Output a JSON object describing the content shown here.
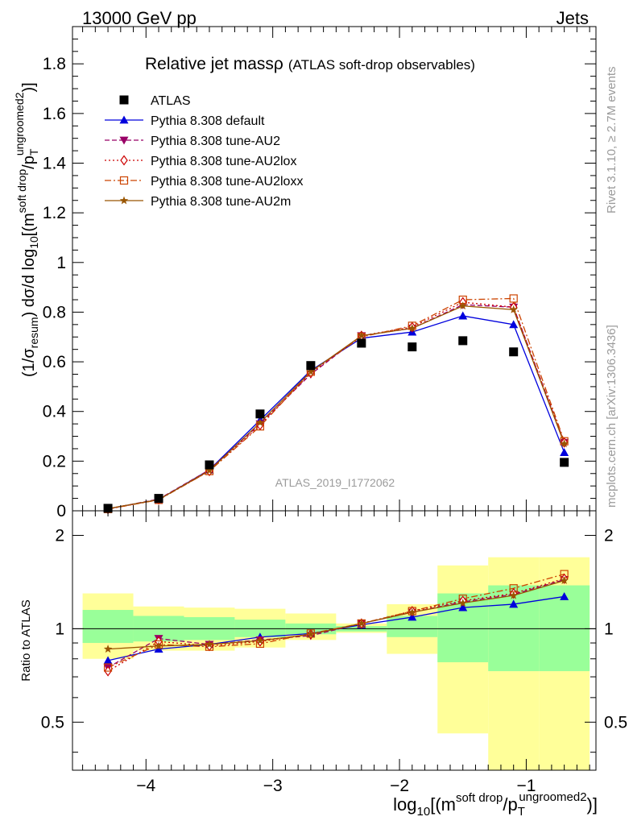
{
  "header": {
    "left": "13000 GeV pp",
    "right": "Jets"
  },
  "side_labels": {
    "rivet": "Rivet 3.1.10, ≥ 2.7M events",
    "mcplots": "mcplots.cern.ch [arXiv:1306.3436]"
  },
  "chart_data": [
    {
      "type": "line",
      "title_main": "Relative jet mass",
      "title_rho": "ρ",
      "title_suffix": "(ATLAS soft-drop observables)",
      "analysis_tag": "ATLAS_2019_I1772062",
      "ylabel": "(1/σresum) dσ/d log10[(m soft drop/pT ungroomed)2]",
      "ylabel_parts": {
        "a": "(1/σ",
        "a_sub": "resum",
        "b": ") dσ/d log",
        "b_sub": "10",
        "c": "[(m",
        "c_sup": "soft drop",
        "d": "/p",
        "d_sub": "T",
        "d_sup": "ungroomed",
        "e": ")",
        "e_sup": "2",
        "f": "]"
      },
      "xlim": [
        -4.58,
        -0.45
      ],
      "ylim": [
        0,
        1.95
      ],
      "yticks": [
        0,
        0.2,
        0.4,
        0.6,
        0.8,
        1,
        1.2,
        1.4,
        1.6,
        1.8
      ],
      "ytick_labels": [
        "0",
        "0.2",
        "0.4",
        "0.6",
        "0.8",
        "1",
        "1.2",
        "1.4",
        "1.6",
        "1.8"
      ],
      "x": [
        -4.3,
        -3.9,
        -3.5,
        -3.1,
        -2.7,
        -2.3,
        -1.9,
        -1.5,
        -1.1,
        -0.7
      ],
      "legend": {
        "placement": "top-left",
        "entries": [
          "ATLAS",
          "Pythia 8.308 default",
          "Pythia 8.308 tune-AU2",
          "Pythia 8.308 tune-AU2lox",
          "Pythia 8.308 tune-AU2loxx",
          "Pythia 8.308 tune-AU2m"
        ]
      },
      "data": {
        "name": "ATLAS",
        "values": [
          0.01,
          0.05,
          0.185,
          0.39,
          0.585,
          0.675,
          0.66,
          0.685,
          0.64,
          0.195
        ]
      },
      "series": [
        {
          "name": "Pythia 8.308 default",
          "color": "#0000dd",
          "marker": "triangle-up",
          "dash": "solid",
          "values": [
            0.008,
            0.045,
            0.165,
            0.365,
            0.565,
            0.695,
            0.72,
            0.785,
            0.75,
            0.235
          ]
        },
        {
          "name": "Pythia 8.308 tune-AU2",
          "color": "#990066",
          "marker": "triangle-down",
          "dash": "dashed",
          "values": [
            0.008,
            0.047,
            0.165,
            0.35,
            0.55,
            0.705,
            0.735,
            0.83,
            0.82,
            0.275
          ]
        },
        {
          "name": "Pythia 8.308 tune-AU2lox",
          "color": "#cc0000",
          "marker": "diamond",
          "dash": "dotted",
          "values": [
            0.007,
            0.045,
            0.16,
            0.345,
            0.555,
            0.705,
            0.74,
            0.84,
            0.82,
            0.275
          ]
        },
        {
          "name": "Pythia 8.308 tune-AU2loxx",
          "color": "#cc4400",
          "marker": "square-open",
          "dash": "dashdot",
          "values": [
            0.007,
            0.044,
            0.16,
            0.34,
            0.56,
            0.7,
            0.745,
            0.85,
            0.855,
            0.28
          ]
        },
        {
          "name": "Pythia 8.308 tune-AU2m",
          "color": "#995500",
          "marker": "star",
          "dash": "solid",
          "values": [
            0.009,
            0.045,
            0.162,
            0.355,
            0.56,
            0.705,
            0.735,
            0.825,
            0.81,
            0.27
          ]
        }
      ]
    },
    {
      "type": "line",
      "ylabel": "Ratio to ATLAS",
      "xlabel": "log10[(m soft drop/pT ungroomed)2]",
      "xlabel_parts": {
        "a": "log",
        "a_sub": "10",
        "b": "[(m",
        "b_sup": "soft drop",
        "c": "/p",
        "c_sub": "T",
        "c_sup": "ungroomed",
        "d": ")",
        "d_sup": "2",
        "e": "]"
      },
      "y_scale": "log",
      "xlim": [
        -4.58,
        -0.45
      ],
      "ylim": [
        0.35,
        2.4
      ],
      "xticks": [
        -4,
        -3,
        -2,
        -1
      ],
      "xtick_labels": [
        "−4",
        "−3",
        "−2",
        "−1"
      ],
      "yticks": [
        0.5,
        1,
        2
      ],
      "ytick_labels": [
        "0.5",
        "1",
        "2"
      ],
      "bin_edges": [
        -4.5,
        -4.1,
        -3.7,
        -3.3,
        -2.9,
        -2.5,
        -2.1,
        -1.7,
        -1.3,
        -0.9,
        -0.5
      ],
      "band_inner": {
        "color": "#99ff99",
        "lo": [
          0.9,
          0.91,
          0.92,
          0.94,
          0.96,
          0.98,
          0.94,
          0.78,
          0.73,
          0.73
        ],
        "hi": [
          1.15,
          1.1,
          1.09,
          1.07,
          1.04,
          1.02,
          1.1,
          1.3,
          1.38,
          1.38
        ]
      },
      "band_outer": {
        "color": "#ffff99",
        "lo": [
          0.8,
          0.85,
          0.85,
          0.87,
          0.92,
          0.97,
          0.83,
          0.46,
          0.33,
          0.33
        ],
        "hi": [
          1.3,
          1.18,
          1.17,
          1.16,
          1.12,
          1.04,
          1.2,
          1.6,
          1.7,
          1.7
        ]
      },
      "x": [
        -4.3,
        -3.9,
        -3.5,
        -3.1,
        -2.7,
        -2.3,
        -1.9,
        -1.5,
        -1.1,
        -0.7
      ],
      "series": [
        {
          "name": "Pythia 8.308 default",
          "color": "#0000dd",
          "marker": "triangle-up",
          "dash": "solid",
          "values": [
            0.79,
            0.86,
            0.89,
            0.94,
            0.965,
            1.03,
            1.09,
            1.17,
            1.2,
            1.27
          ]
        },
        {
          "name": "Pythia 8.308 tune-AU2",
          "color": "#990066",
          "marker": "triangle-down",
          "dash": "dashed",
          "values": [
            0.75,
            0.93,
            0.89,
            0.92,
            0.95,
            1.04,
            1.13,
            1.22,
            1.29,
            1.44
          ]
        },
        {
          "name": "Pythia 8.308 tune-AU2lox",
          "color": "#cc0000",
          "marker": "diamond",
          "dash": "dotted",
          "values": [
            0.73,
            0.91,
            0.88,
            0.91,
            0.96,
            1.04,
            1.14,
            1.23,
            1.3,
            1.45
          ]
        },
        {
          "name": "Pythia 8.308 tune-AU2loxx",
          "color": "#cc4400",
          "marker": "square-open",
          "dash": "dashdot",
          "values": [
            0.75,
            0.89,
            0.875,
            0.895,
            0.965,
            1.04,
            1.14,
            1.25,
            1.35,
            1.5
          ]
        },
        {
          "name": "Pythia 8.308 tune-AU2m",
          "color": "#995500",
          "marker": "star",
          "dash": "solid",
          "values": [
            0.86,
            0.88,
            0.89,
            0.915,
            0.96,
            1.04,
            1.13,
            1.21,
            1.28,
            1.43
          ]
        }
      ]
    }
  ]
}
